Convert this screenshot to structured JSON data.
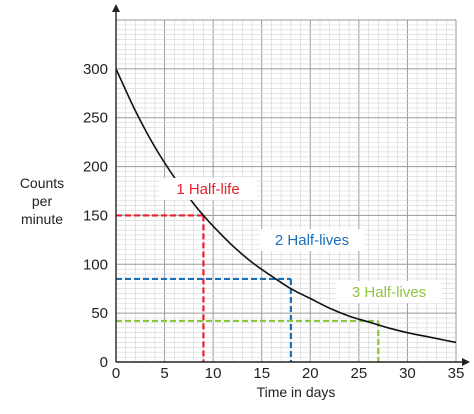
{
  "chart_data": {
    "type": "line",
    "title": "",
    "xlabel": "Time in days",
    "ylabel_lines": [
      "Counts",
      "per",
      "minute"
    ],
    "xlim": [
      0,
      35
    ],
    "ylim": [
      0,
      350
    ],
    "x_ticks": [
      0,
      5,
      10,
      15,
      20,
      25,
      30,
      35
    ],
    "y_ticks": [
      0,
      50,
      100,
      150,
      200,
      250,
      300
    ],
    "grid": true,
    "decay_curve": {
      "x": [
        0,
        2,
        4,
        6,
        8,
        9,
        10,
        12,
        14,
        16,
        18,
        20,
        22,
        24,
        26,
        27,
        28,
        30,
        32,
        34,
        35
      ],
      "y": [
        300,
        257,
        220,
        189,
        162,
        150,
        139,
        119,
        102,
        88,
        75,
        65,
        55,
        47,
        41,
        38,
        35,
        30,
        26,
        22,
        20
      ]
    },
    "annotations": [
      {
        "text": "1 Half-life",
        "x": 9,
        "y": 150,
        "color": "#e8202a"
      },
      {
        "text": "2 Half-lives",
        "x": 18,
        "y": 85,
        "color": "#1a6fb8"
      },
      {
        "text": "3 Half-lives",
        "x": 27,
        "y": 42,
        "color": "#8cc63f"
      }
    ],
    "colors": {
      "grid_minor": "#d4d4d4",
      "grid_major": "#9a9a9a",
      "curve": "#111111",
      "axis": "#222222"
    }
  }
}
